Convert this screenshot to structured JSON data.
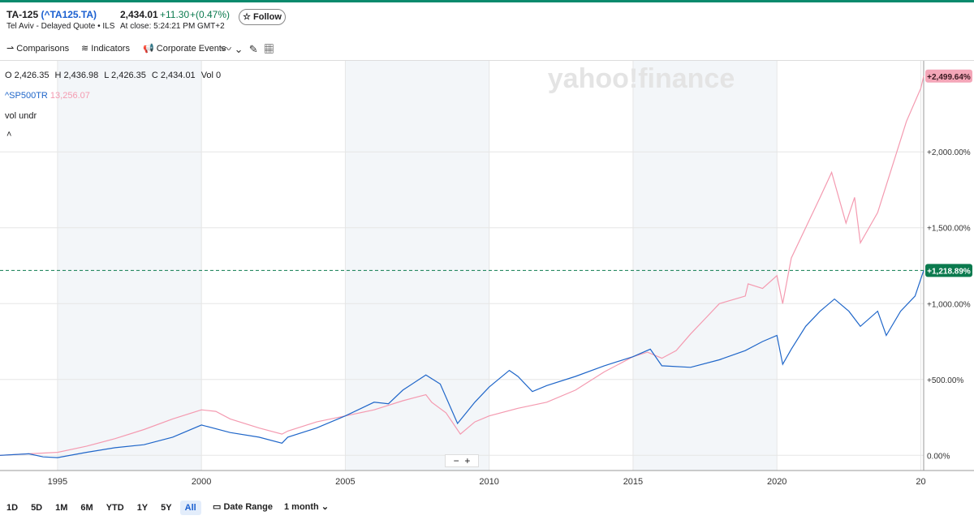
{
  "header": {
    "title": "TA-125",
    "symbol": "(^TA125.TA)",
    "exchange": "Tel Aviv - Delayed Quote • ILS",
    "price": "2,434.01",
    "change": "+11.30",
    "change_pct": "+(0.47%)",
    "close_time": "At close: 5:24:21 PM GMT+2",
    "follow": "Follow"
  },
  "toolbar": [
    "Comparisons",
    "Indicators",
    "Corporate Events"
  ],
  "ohlc": [
    "O 2,426.35",
    "H 2,436.98",
    "L 2,426.35",
    "C 2,434.01",
    "Vol 0"
  ],
  "legend": {
    "compare_value": "13,256.07",
    "volume": "vol undr"
  },
  "watermark": "yahoo!finance",
  "ranges": [
    "1D",
    "5D",
    "1M",
    "6M",
    "YTD",
    "1Y",
    "5Y",
    "All"
  ],
  "date_range": "Date Range",
  "interval": "1 month",
  "chart_data": {
    "type": "line",
    "xlim": [
      1993,
      2025.1
    ],
    "xticks": [
      1995,
      2000,
      2005,
      2010,
      2015,
      2020,
      {
        "value": 2025,
        "label": "20"
      }
    ],
    "ylim": [
      -100,
      2600
    ],
    "yticks": [
      {
        "value": 0,
        "label": "0.00%"
      },
      {
        "value": 500,
        "label": "+500.00%"
      },
      {
        "value": 1000,
        "label": "+1,000.00%"
      },
      {
        "value": 1500,
        "label": "+1,500.00%"
      },
      {
        "value": 2000,
        "label": "+2,000.00%"
      }
    ],
    "grid": true,
    "series": [
      {
        "name": "TA-125",
        "color": "#1f66c9",
        "badge_color": "#0b7a4e",
        "last_label": "+1,218.89%",
        "x": [
          1993,
          1994,
          1994.5,
          1995,
          1996,
          1997,
          1998,
          1999,
          2000,
          2001,
          2002,
          2002.8,
          2003,
          2004,
          2005,
          2006,
          2006.5,
          2007,
          2007.8,
          2008.3,
          2008.9,
          2009.5,
          2010,
          2010.7,
          2011,
          2011.5,
          2012,
          2013,
          2014,
          2015,
          2015.6,
          2016,
          2017,
          2018,
          2018.9,
          2019.5,
          2020,
          2020.2,
          2020.5,
          2021,
          2021.5,
          2022,
          2022.5,
          2022.9,
          2023.5,
          2023.8,
          2024.3,
          2024.8,
          2025.1
        ],
        "values": [
          0,
          10,
          -10,
          -15,
          20,
          50,
          70,
          120,
          200,
          150,
          120,
          80,
          120,
          180,
          260,
          350,
          340,
          430,
          530,
          470,
          210,
          350,
          450,
          560,
          520,
          420,
          460,
          520,
          590,
          650,
          700,
          590,
          580,
          630,
          690,
          750,
          790,
          600,
          700,
          850,
          950,
          1030,
          950,
          850,
          950,
          790,
          950,
          1050,
          1218.89
        ]
      },
      {
        "name": "^SP500TR",
        "color": "#f49ab0",
        "badge_color": "#f4a6b8",
        "last_label": "+2,499.64%",
        "x": [
          1993,
          1994,
          1995,
          1996,
          1997,
          1998,
          1999,
          2000,
          2000.5,
          2001,
          2002,
          2002.8,
          2003,
          2004,
          2005,
          2006,
          2007,
          2007.8,
          2008,
          2008.5,
          2009,
          2009.5,
          2010,
          2011,
          2012,
          2013,
          2014,
          2015,
          2015.5,
          2016,
          2016.5,
          2017,
          2017.5,
          2018,
          2018.9,
          2019,
          2019.5,
          2020,
          2020.2,
          2020.5,
          2021,
          2021.5,
          2021.9,
          2022.4,
          2022.7,
          2022.9,
          2023.5,
          2024,
          2024.5,
          2025,
          2025.1
        ],
        "values": [
          0,
          10,
          20,
          60,
          110,
          170,
          240,
          300,
          290,
          240,
          180,
          140,
          160,
          220,
          260,
          300,
          360,
          400,
          350,
          280,
          140,
          220,
          260,
          310,
          350,
          430,
          550,
          650,
          680,
          640,
          690,
          800,
          900,
          1000,
          1050,
          1130,
          1100,
          1184,
          1000,
          1300,
          1500,
          1700,
          1865,
          1530,
          1700,
          1400,
          1600,
          1900,
          2200,
          2420,
          2499.64
        ]
      }
    ]
  }
}
